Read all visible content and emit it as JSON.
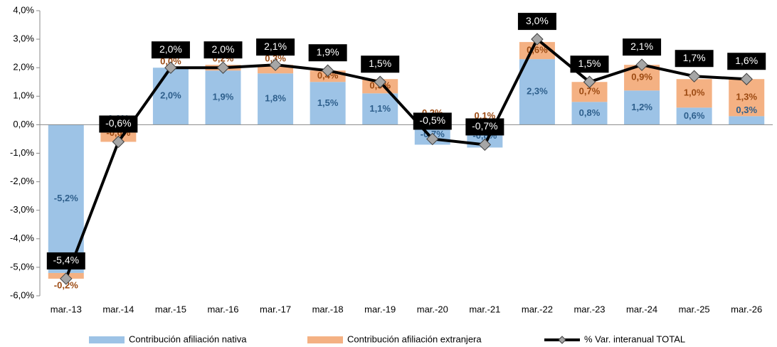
{
  "chart_data": {
    "type": "bar",
    "categories": [
      "mar.-13",
      "mar.-14",
      "mar.-15",
      "mar.-16",
      "mar.-17",
      "mar.-18",
      "mar.-19",
      "mar.-20",
      "mar.-21",
      "mar.-22",
      "mar.-23",
      "mar.-24",
      "mar.-25",
      "mar.-26"
    ],
    "ylim": [
      -6,
      4
    ],
    "yticks": [
      {
        "value": -6,
        "label": "-6,0%"
      },
      {
        "value": -5,
        "label": "-5,0%"
      },
      {
        "value": -4,
        "label": "-4,0%"
      },
      {
        "value": -3,
        "label": "-3,0%"
      },
      {
        "value": -2,
        "label": "-2,0%"
      },
      {
        "value": -1,
        "label": "-1,0%"
      },
      {
        "value": 0,
        "label": "0,0%"
      },
      {
        "value": 1,
        "label": "1,0%"
      },
      {
        "value": 2,
        "label": "2,0%"
      },
      {
        "value": 3,
        "label": "3,0%"
      },
      {
        "value": 4,
        "label": "4,0%"
      }
    ],
    "series": [
      {
        "name": "Contribución afiliación nativa",
        "type": "bar",
        "color": "#9dc3e6",
        "label_color": "#2e5f8c",
        "values": [
          -5.2,
          0.0,
          2.0,
          1.9,
          1.8,
          1.5,
          1.1,
          -0.7,
          -0.8,
          2.3,
          0.8,
          1.2,
          0.6,
          0.3
        ],
        "value_labels": [
          "-5,2%",
          "0,0%",
          "2,0%",
          "1,9%",
          "1,8%",
          "1,5%",
          "1,1%",
          "-0,7%",
          "-0,8%",
          "2,3%",
          "0,8%",
          "1,2%",
          "0,6%",
          "0,3%"
        ]
      },
      {
        "name": "Contribución afiliación extranjera",
        "type": "bar",
        "color": "#f4b183",
        "label_color": "#9c4a12",
        "values": [
          -0.2,
          -0.6,
          0.0,
          0.2,
          0.3,
          0.4,
          0.5,
          0.2,
          0.1,
          0.6,
          0.7,
          0.9,
          1.0,
          1.3
        ],
        "value_labels": [
          "-0,2%",
          "-0,6%",
          "0,0%",
          "0,2%",
          "0,3%",
          "0,4%",
          "0,5%",
          "0,2%",
          "0,1%",
          "0,6%",
          "0,7%",
          "0,9%",
          "1,0%",
          "1,3%"
        ]
      },
      {
        "name": "% Var. interanual TOTAL",
        "type": "line",
        "color": "#000000",
        "marker_color": "#a6a6a6",
        "values": [
          -5.4,
          -0.6,
          2.0,
          2.0,
          2.1,
          1.9,
          1.5,
          -0.5,
          -0.7,
          3.0,
          1.5,
          2.1,
          1.7,
          1.6
        ],
        "value_labels": [
          "-5,4%",
          "-0,6%",
          "2,0%",
          "2,0%",
          "2,1%",
          "1,9%",
          "1,5%",
          "-0,5%",
          "-0,7%",
          "3,0%",
          "1,5%",
          "2,1%",
          "1,7%",
          "1,6%"
        ]
      }
    ]
  }
}
